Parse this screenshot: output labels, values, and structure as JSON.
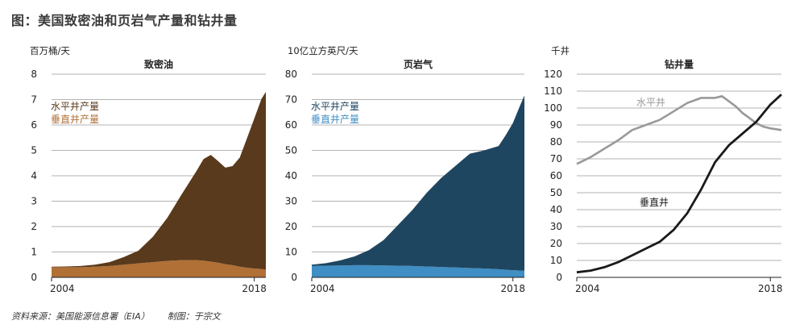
{
  "title": "图：美国致密油和页岩气产量和钻井量",
  "footer": {
    "source": "资料来源：美国能源信息署（EIA）",
    "credit": "制图：于宗文"
  },
  "colors": {
    "oil_horizontal": "#5a3a1c",
    "oil_vertical": "#b07036",
    "gas_horizontal": "#1f4660",
    "gas_vertical": "#3f8ec4",
    "rig_horizontal": "#999999",
    "rig_vertical": "#1a1a1a",
    "grid": "#9a9a9a"
  },
  "chart_data": [
    {
      "type": "area",
      "title": "致密油",
      "unit": "百万桶/天",
      "ylim": [
        0,
        8
      ],
      "yticks": [
        0,
        1,
        2,
        3,
        4,
        5,
        6,
        7,
        8
      ],
      "xlim": [
        2004,
        2018.8
      ],
      "xticks": [
        2004,
        2018
      ],
      "stacked": true,
      "legend": [
        "水平井产量",
        "垂直井产量"
      ],
      "x": [
        2004,
        2005,
        2006,
        2007,
        2008,
        2009,
        2010,
        2011,
        2012,
        2013,
        2014,
        2014.5,
        2015,
        2015.5,
        2016,
        2016.5,
        2017,
        2017.5,
        2018,
        2018.5,
        2018.8
      ],
      "series": [
        {
          "name": "垂直井产量",
          "values": [
            0.4,
            0.4,
            0.4,
            0.42,
            0.45,
            0.5,
            0.55,
            0.6,
            0.65,
            0.68,
            0.68,
            0.66,
            0.62,
            0.58,
            0.52,
            0.48,
            0.42,
            0.38,
            0.35,
            0.33,
            0.3
          ]
        },
        {
          "name": "水平井产量",
          "values": [
            0.02,
            0.03,
            0.05,
            0.08,
            0.15,
            0.3,
            0.5,
            1.0,
            1.7,
            2.6,
            3.5,
            4.0,
            4.2,
            4.0,
            3.8,
            3.9,
            4.3,
            5.1,
            5.9,
            6.7,
            7.0
          ]
        }
      ]
    },
    {
      "type": "area",
      "title": "页岩气",
      "unit": "10亿立方英尺/天",
      "ylim": [
        0,
        80
      ],
      "yticks": [
        0,
        10,
        20,
        30,
        40,
        50,
        60,
        70,
        80
      ],
      "xlim": [
        2004,
        2018.8
      ],
      "xticks": [
        2004,
        2018
      ],
      "stacked": true,
      "legend": [
        "水平井产量",
        "垂直井产量"
      ],
      "x": [
        2004,
        2005,
        2006,
        2007,
        2008,
        2009,
        2010,
        2011,
        2012,
        2013,
        2014,
        2015,
        2016,
        2017,
        2017.5,
        2018,
        2018.5,
        2018.8
      ],
      "series": [
        {
          "name": "垂直井产量",
          "values": [
            4.5,
            4.6,
            4.7,
            4.8,
            4.8,
            4.7,
            4.6,
            4.5,
            4.3,
            4.1,
            3.9,
            3.7,
            3.5,
            3.2,
            3.0,
            2.8,
            2.7,
            2.6
          ]
        },
        {
          "name": "水平井产量",
          "values": [
            0.5,
            1.0,
            2.0,
            3.5,
            6.0,
            10.0,
            16.0,
            22.0,
            29.0,
            35.0,
            40.0,
            45.0,
            46.5,
            48.5,
            53.0,
            58.0,
            65.0,
            69.0
          ]
        }
      ]
    },
    {
      "type": "line",
      "title": "钻井量",
      "unit": "千井",
      "ylim": [
        0,
        120
      ],
      "yticks": [
        0,
        10,
        20,
        30,
        40,
        50,
        60,
        70,
        80,
        90,
        100,
        110,
        120
      ],
      "xlim": [
        2004,
        2018.8
      ],
      "xticks": [
        2004,
        2018
      ],
      "series": [
        {
          "name": "水平井",
          "x": [
            2004,
            2005,
            2006,
            2007,
            2008,
            2009,
            2010,
            2011,
            2012,
            2013,
            2014,
            2014.5,
            2015,
            2015.5,
            2016,
            2016.5,
            2017,
            2017.5,
            2018,
            2018.8
          ],
          "values": [
            67,
            71,
            76,
            81,
            87,
            90,
            93,
            98,
            103,
            106,
            106,
            107,
            104,
            101,
            97,
            94,
            91,
            89,
            88,
            87
          ]
        },
        {
          "name": "垂直井",
          "x": [
            2004,
            2005,
            2006,
            2007,
            2008,
            2009,
            2010,
            2011,
            2012,
            2013,
            2014,
            2015,
            2016,
            2017,
            2017.5,
            2018,
            2018.8
          ],
          "values": [
            3,
            4,
            6,
            9,
            13,
            17,
            21,
            28,
            38,
            52,
            68,
            78,
            85,
            92,
            97,
            102,
            108
          ]
        }
      ]
    }
  ]
}
